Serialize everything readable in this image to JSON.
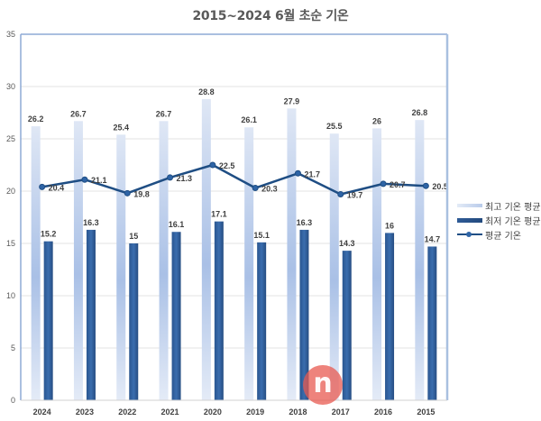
{
  "chart_data": {
    "type": "bar",
    "title": "2015~2024 6월 초순 기온",
    "xlabel": "",
    "ylabel": "",
    "ylim": [
      0,
      35
    ],
    "yticks": [
      0,
      5,
      10,
      15,
      20,
      25,
      30,
      35
    ],
    "grid": true,
    "legend_position": "right",
    "categories": [
      "2024",
      "2023",
      "2022",
      "2021",
      "2020",
      "2019",
      "2018",
      "2017",
      "2016",
      "2015"
    ],
    "series": [
      {
        "name": "최고 기온 평균",
        "kind": "bar",
        "color": "#c6d5ee",
        "values": [
          26.2,
          26.7,
          25.4,
          26.7,
          28.8,
          26.1,
          27.9,
          25.5,
          26,
          26.8
        ]
      },
      {
        "name": "최저 기온 평균",
        "kind": "bar",
        "color": "#2b5991",
        "values": [
          15.2,
          16.3,
          15,
          16.1,
          17.1,
          15.1,
          16.3,
          14.3,
          16,
          14.7
        ]
      },
      {
        "name": "평균 기온",
        "kind": "line",
        "color": "#1f4e84",
        "values": [
          20.4,
          21.1,
          19.8,
          21.3,
          22.5,
          20.3,
          21.7,
          19.7,
          20.7,
          20.5
        ]
      }
    ]
  },
  "legend": {
    "items": [
      "최고 기온 평균",
      "최저 기온 평균",
      "평균 기온"
    ]
  },
  "watermark": {
    "glyph": "n"
  }
}
